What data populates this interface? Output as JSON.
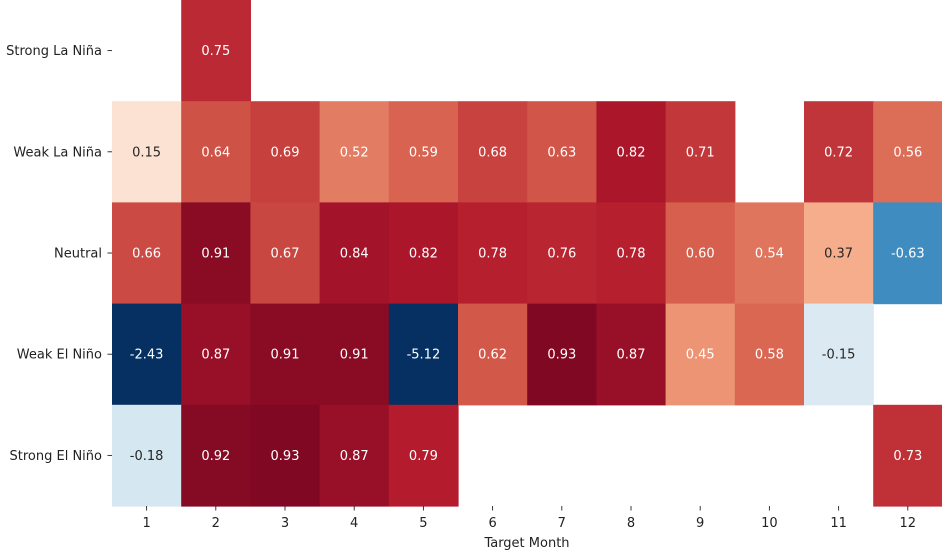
{
  "chart_data": {
    "type": "heatmap",
    "xlabel": "Target Month",
    "ylabel": "",
    "x_categories": [
      "1",
      "2",
      "3",
      "4",
      "5",
      "6",
      "7",
      "8",
      "9",
      "10",
      "11",
      "12"
    ],
    "y_categories": [
      "Strong La Niña",
      "Weak La Niña",
      "Neutral",
      "Weak El Niño",
      "Strong El Niño"
    ],
    "values": [
      [
        null,
        0.75,
        null,
        null,
        null,
        null,
        null,
        null,
        null,
        null,
        null,
        null
      ],
      [
        0.15,
        0.64,
        0.69,
        0.52,
        0.59,
        0.68,
        0.63,
        0.82,
        0.71,
        null,
        0.72,
        0.56
      ],
      [
        0.66,
        0.91,
        0.67,
        0.84,
        0.82,
        0.78,
        0.76,
        0.78,
        0.6,
        0.54,
        0.37,
        -0.63
      ],
      [
        -2.43,
        0.87,
        0.91,
        0.91,
        -5.12,
        0.62,
        0.93,
        0.87,
        0.45,
        0.58,
        -0.15,
        null
      ],
      [
        -0.18,
        0.92,
        0.93,
        0.87,
        0.79,
        null,
        null,
        null,
        null,
        null,
        null,
        0.73
      ]
    ],
    "value_format": "2 decimals",
    "colormap": "RdBu_r",
    "color_range": [
      -1,
      1
    ],
    "colorbar": false,
    "grid": false
  }
}
